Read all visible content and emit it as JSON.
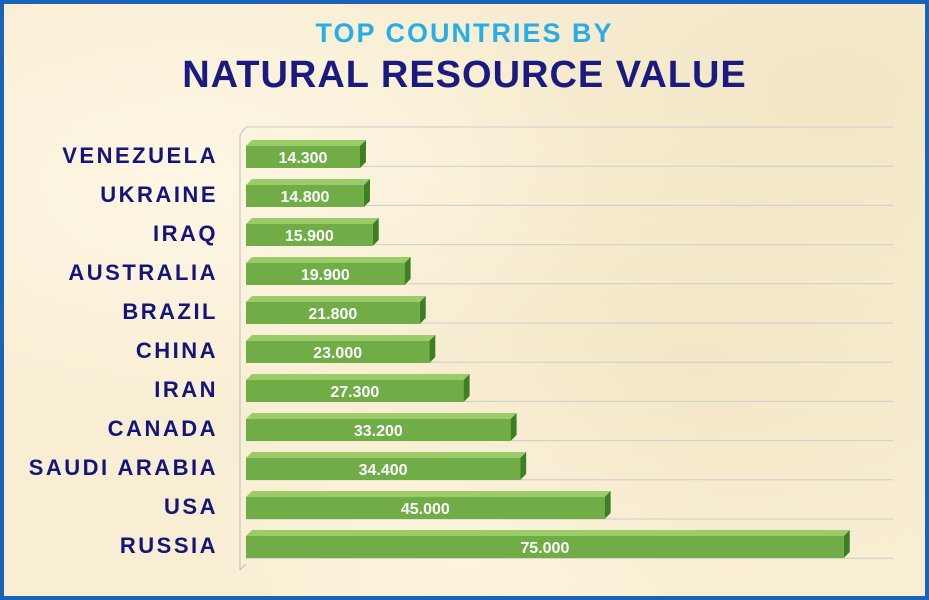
{
  "chart_data": {
    "type": "bar",
    "orientation": "horizontal",
    "title": "TOP COUNTRIES BY",
    "subtitle": "NATURAL RESOURCE VALUE",
    "categories": [
      "VENEZUELA",
      "UKRAINE",
      "IRAQ",
      "AUSTRALIA",
      "BRAZIL",
      "CHINA",
      "IRAN",
      "CANADA",
      "SAUDI ARABIA",
      "USA",
      "RUSSIA"
    ],
    "values": [
      14.3,
      14.8,
      15.9,
      19.9,
      21.8,
      23.0,
      27.3,
      33.2,
      34.4,
      45.0,
      75.0
    ],
    "value_labels": [
      "14.300",
      "14.800",
      "15.900",
      "19.900",
      "21.800",
      "23.000",
      "27.300",
      "33.200",
      "34.400",
      "45.000",
      "75.000"
    ],
    "xlabel": "",
    "ylabel": "",
    "xlim": [
      0,
      84
    ],
    "grid": true,
    "legend": "none",
    "colors": {
      "bar_front": "#70ad47",
      "bar_side": "#3f7f24",
      "bar_top": "#9ccc6a",
      "title_accent": "#27aee6",
      "title_main": "#1a1a80",
      "category_text": "#14147a",
      "frame": "#1a63b8"
    }
  }
}
